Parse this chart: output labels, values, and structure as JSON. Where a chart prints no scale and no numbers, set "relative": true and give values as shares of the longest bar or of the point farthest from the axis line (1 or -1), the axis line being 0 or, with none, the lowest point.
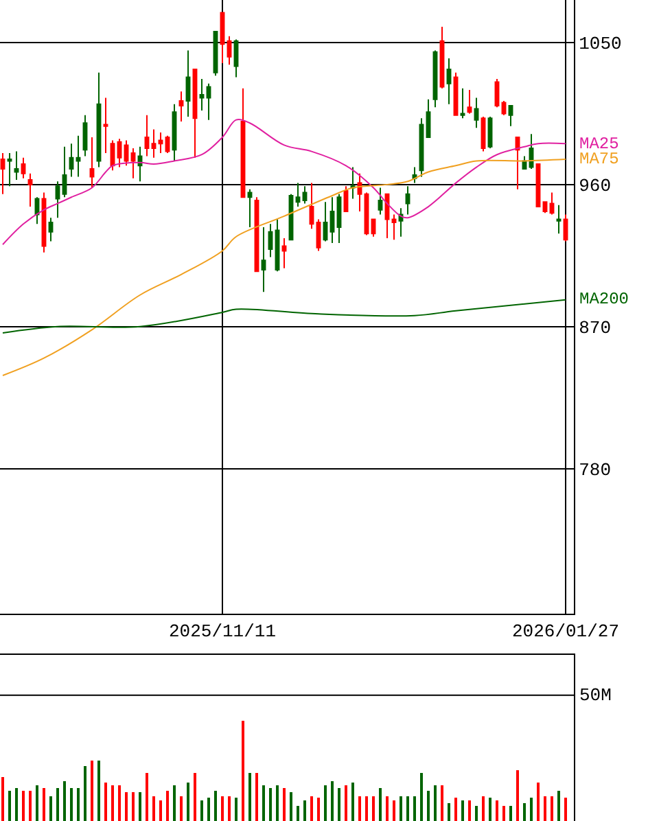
{
  "chart_data": [
    {
      "type": "candlestick",
      "categories": [
        null,
        null,
        null,
        null,
        null,
        null,
        null,
        null,
        null,
        null,
        null,
        null,
        null,
        null,
        null,
        null,
        null,
        null,
        null,
        null,
        null,
        null,
        null,
        null,
        null,
        null,
        null,
        null,
        null,
        null,
        null,
        null,
        "2025/11/11",
        null,
        null,
        null,
        null,
        null,
        null,
        null,
        null,
        null,
        null,
        null,
        null,
        null,
        null,
        null,
        null,
        null,
        null,
        null,
        null,
        null,
        null,
        null,
        null,
        null,
        null,
        null,
        null,
        null,
        null,
        null,
        null,
        null,
        null,
        null,
        null,
        null,
        null,
        null,
        null,
        null,
        null,
        null,
        null,
        null,
        null,
        null,
        null,
        null,
        "2026/01/27"
      ],
      "ohlc": [
        [
          976,
          980,
          954,
          970
        ],
        [
          975,
          980,
          959,
          976
        ],
        [
          968,
          981,
          963,
          970
        ],
        [
          973,
          977,
          964,
          967
        ],
        [
          963,
          967,
          946,
          960
        ],
        [
          941,
          952,
          935,
          951
        ],
        [
          951,
          955,
          917,
          921
        ],
        [
          930,
          939,
          924,
          936
        ],
        [
          951,
          962,
          939,
          959
        ],
        [
          954,
          984,
          952,
          966
        ],
        [
          970,
          986,
          965,
          977
        ],
        [
          975,
          991,
          965,
          977
        ],
        [
          982,
          1004,
          978,
          999
        ],
        [
          970,
          990,
          958,
          965
        ],
        [
          975,
          1031,
          971,
          1011
        ],
        [
          998,
          1015,
          980,
          997
        ],
        [
          986,
          988,
          969,
          972
        ],
        [
          987,
          989,
          971,
          977
        ],
        [
          985,
          988,
          972,
          975
        ],
        [
          980,
          983,
          964,
          975
        ],
        [
          972,
          984,
          962,
          978
        ],
        [
          990,
          1004,
          978,
          983
        ],
        [
          986,
          995,
          977,
          983
        ],
        [
          988,
          993,
          980,
          986
        ],
        [
          990,
          991,
          980,
          981
        ],
        [
          982,
          1011,
          975,
          1006
        ],
        [
          1013,
          1019,
          1000,
          1010
        ],
        [
          1013,
          1045,
          1003,
          1028
        ],
        [
          1033,
          1033,
          977,
          1002
        ],
        [
          1015,
          1027,
          1007,
          1017
        ],
        [
          1015,
          1024,
          1001,
          1022
        ],
        [
          1031,
          1057,
          1029,
          1057
        ],
        [
          1069,
          1069,
          1037,
          1049
        ],
        [
          1051,
          1054,
          1036,
          1041
        ],
        [
          1035,
          1052,
          1028,
          1051
        ],
        [
          1000,
          1021,
          952,
          952
        ],
        [
          952,
          957,
          933,
          955
        ],
        [
          950,
          952,
          905,
          905
        ],
        [
          906,
          933,
          892,
          912
        ],
        [
          919,
          935,
          914,
          930
        ],
        [
          906,
          938,
          905,
          931
        ],
        [
          921,
          926,
          907,
          918
        ],
        [
          925,
          954,
          925,
          953
        ],
        [
          949,
          961,
          946,
          952
        ],
        [
          950,
          959,
          948,
          955
        ],
        [
          946,
          961,
          932,
          935
        ],
        [
          936,
          938,
          918,
          920
        ],
        [
          925,
          949,
          924,
          936
        ],
        [
          930,
          952,
          923,
          943
        ],
        [
          933,
          954,
          923,
          952
        ],
        [
          956,
          959,
          943,
          943
        ],
        [
          958,
          971,
          951,
          959
        ],
        [
          961,
          967,
          943,
          954
        ],
        [
          954,
          955,
          928,
          929
        ],
        [
          938,
          938,
          927,
          929
        ],
        [
          944,
          958,
          941,
          950
        ],
        [
          954,
          954,
          926,
          938
        ],
        [
          938,
          941,
          925,
          936
        ],
        [
          937,
          945,
          927,
          941
        ],
        [
          948,
          959,
          941,
          954
        ],
        [
          964,
          971,
          961,
          966
        ],
        [
          969,
          1002,
          965,
          998
        ],
        [
          990,
          1014,
          990,
          1006
        ],
        [
          1014,
          1045,
          1009,
          1044
        ],
        [
          1051,
          1060,
          1021,
          1022
        ],
        [
          1024,
          1040,
          1011,
          1033
        ],
        [
          1028,
          1031,
          1004,
          1004
        ],
        [
          1004,
          1021,
          1002,
          1005
        ],
        [
          1009,
          1020,
          1005,
          1006
        ],
        [
          1001,
          1015,
          996,
          1008
        ],
        [
          1002,
          1003,
          981,
          983
        ],
        [
          984,
          1003,
          983,
          1002
        ],
        [
          1025,
          1027,
          1009,
          1010
        ],
        [
          1012,
          1013,
          1004,
          1005
        ],
        [
          1004,
          1010,
          997,
          1010
        ],
        [
          990,
          990,
          957,
          982
        ],
        [
          970,
          978,
          970,
          975
        ],
        [
          971,
          992,
          970,
          983
        ],
        [
          973,
          973,
          946,
          946
        ],
        [
          949,
          949,
          942,
          943
        ],
        [
          948,
          955,
          941,
          942
        ],
        [
          937,
          947,
          929,
          938
        ],
        [
          938,
          941,
          924,
          925
        ]
      ],
      "colors": [
        "#ff0000",
        "#006400",
        "#006400",
        "#ff0000",
        "#ff0000",
        "#006400",
        "#ff0000",
        "#006400",
        "#006400",
        "#006400",
        "#006400",
        "#006400",
        "#006400",
        "#ff0000",
        "#006400",
        "#ff0000",
        "#ff0000",
        "#ff0000",
        "#ff0000",
        "#ff0000",
        "#006400",
        "#ff0000",
        "#ff0000",
        "#ff0000",
        "#ff0000",
        "#006400",
        "#ff0000",
        "#006400",
        "#ff0000",
        "#006400",
        "#006400",
        "#006400",
        "#ff0000",
        "#ff0000",
        "#006400",
        "#ff0000",
        "#006400",
        "#ff0000",
        "#006400",
        "#006400",
        "#006400",
        "#ff0000",
        "#006400",
        "#006400",
        "#006400",
        "#ff0000",
        "#ff0000",
        "#006400",
        "#006400",
        "#006400",
        "#ff0000",
        "#006400",
        "#ff0000",
        "#ff0000",
        "#ff0000",
        "#006400",
        "#ff0000",
        "#ff0000",
        "#006400",
        "#006400",
        "#006400",
        "#006400",
        "#006400",
        "#006400",
        "#ff0000",
        "#006400",
        "#ff0000",
        "#006400",
        "#ff0000",
        "#006400",
        "#ff0000",
        "#006400",
        "#ff0000",
        "#ff0000",
        "#006400",
        "#ff0000",
        "#006400",
        "#006400",
        "#ff0000",
        "#ff0000",
        "#ff0000",
        "#006400",
        "#ff0000"
      ],
      "series": [
        {
          "name": "MA25",
          "type": "line",
          "color": "#e020a0",
          "values": [
            922,
            null,
            null,
            935,
            null,
            null,
            944,
            null,
            948,
            null,
            952,
            null,
            null,
            958,
            null,
            968,
            972,
            null,
            null,
            null,
            974,
            null,
            973,
            null,
            null,
            975,
            null,
            null,
            null,
            979,
            null,
            null,
            990,
            null,
            1001,
            null,
            999,
            null,
            null,
            null,
            null,
            985,
            null,
            null,
            null,
            981,
            null,
            null,
            null,
            null,
            972,
            null,
            null,
            null,
            958,
            null,
            948,
            null,
            940,
            939,
            null,
            null,
            946,
            null,
            null,
            null,
            961,
            null,
            null,
            971,
            null,
            null,
            979,
            null,
            null,
            null,
            984,
            null,
            986,
            null,
            null,
            null,
            986
          ]
        },
        {
          "name": "MA75",
          "type": "line",
          "color": "#f0a020",
          "values": [
            839,
            null,
            null,
            null,
            null,
            null,
            850,
            null,
            null,
            null,
            null,
            null,
            null,
            868,
            null,
            null,
            null,
            null,
            null,
            null,
            890,
            null,
            null,
            null,
            null,
            null,
            903,
            null,
            null,
            null,
            null,
            null,
            918,
            null,
            927,
            null,
            null,
            null,
            null,
            null,
            null,
            940,
            null,
            null,
            null,
            null,
            null,
            null,
            953,
            null,
            null,
            958,
            null,
            null,
            null,
            null,
            960,
            null,
            null,
            962,
            null,
            null,
            968,
            null,
            null,
            null,
            972,
            null,
            null,
            975,
            null,
            null,
            null,
            null,
            null,
            null,
            975,
            null,
            null,
            null,
            null,
            null,
            976
          ]
        },
        {
          "name": "MA200",
          "type": "line",
          "color": "#006400",
          "values": [
            866,
            null,
            null,
            null,
            null,
            null,
            null,
            null,
            870,
            null,
            null,
            null,
            null,
            null,
            null,
            null,
            null,
            null,
            null,
            null,
            870,
            null,
            null,
            null,
            null,
            null,
            null,
            null,
            null,
            null,
            null,
            null,
            879,
            null,
            881,
            null,
            null,
            null,
            null,
            null,
            null,
            null,
            null,
            null,
            null,
            null,
            878,
            null,
            null,
            null,
            null,
            null,
            null,
            null,
            null,
            null,
            null,
            null,
            null,
            null,
            877,
            null,
            null,
            null,
            null,
            null,
            880,
            null,
            null,
            null,
            null,
            null,
            null,
            null,
            null,
            null,
            null,
            null,
            null,
            null,
            null,
            null,
            887
          ]
        }
      ],
      "ylim": [
        688,
        1077
      ],
      "yticks": [
        780,
        870,
        960,
        1050
      ],
      "grid": true
    },
    {
      "type": "bar",
      "relative": true,
      "categories": [
        null,
        null,
        null,
        null,
        null,
        null,
        null,
        null,
        null,
        null,
        null,
        null,
        null,
        null,
        null,
        null,
        null,
        null,
        null,
        null,
        null,
        null,
        null,
        null,
        null,
        null,
        null,
        null,
        null,
        null,
        null,
        null,
        null,
        null,
        null,
        null,
        null,
        null,
        null,
        null,
        null,
        null,
        null,
        null,
        null,
        null,
        null,
        null,
        null,
        null,
        null,
        null,
        null,
        null,
        null,
        null,
        null,
        null,
        null,
        null,
        null,
        null,
        null,
        null,
        null,
        null,
        null,
        null,
        null,
        null,
        null,
        null,
        null,
        null,
        null,
        null,
        null,
        null,
        null,
        null,
        null,
        null,
        null
      ],
      "values": [
        0.43,
        0.3,
        0.33,
        0.3,
        0.3,
        0.35,
        0.33,
        0.25,
        0.33,
        0.4,
        0.33,
        0.33,
        0.55,
        0.6,
        0.6,
        0.38,
        0.35,
        0.35,
        0.28,
        0.28,
        0.28,
        0.48,
        0.25,
        0.2,
        0.3,
        0.35,
        0.25,
        0.38,
        0.48,
        0.2,
        0.23,
        0.3,
        0.25,
        0.25,
        0.23,
        1,
        0.48,
        0.48,
        0.35,
        0.33,
        0.35,
        0.33,
        0.28,
        0.15,
        0.2,
        0.25,
        0.23,
        0.35,
        0.4,
        0.33,
        0.35,
        0.38,
        0.25,
        0.25,
        0.25,
        0.33,
        0.25,
        0.2,
        0.25,
        0.25,
        0.25,
        0.48,
        0.3,
        0.35,
        0.35,
        0.18,
        0.23,
        0.2,
        0.2,
        0.15,
        0.25,
        0.23,
        0.2,
        0.15,
        0.15,
        0.5,
        0.18,
        0.23,
        0.38,
        0.25,
        0.25,
        0.3,
        0.23
      ],
      "colors": [
        "#ff0000",
        "#006400",
        "#006400",
        "#ff0000",
        "#ff0000",
        "#006400",
        "#ff0000",
        "#006400",
        "#006400",
        "#006400",
        "#006400",
        "#006400",
        "#006400",
        "#ff0000",
        "#006400",
        "#ff0000",
        "#ff0000",
        "#ff0000",
        "#ff0000",
        "#ff0000",
        "#006400",
        "#ff0000",
        "#ff0000",
        "#ff0000",
        "#ff0000",
        "#006400",
        "#ff0000",
        "#006400",
        "#ff0000",
        "#006400",
        "#006400",
        "#006400",
        "#ff0000",
        "#ff0000",
        "#006400",
        "#ff0000",
        "#006400",
        "#ff0000",
        "#006400",
        "#006400",
        "#006400",
        "#ff0000",
        "#006400",
        "#006400",
        "#006400",
        "#ff0000",
        "#ff0000",
        "#006400",
        "#006400",
        "#006400",
        "#ff0000",
        "#006400",
        "#ff0000",
        "#ff0000",
        "#ff0000",
        "#006400",
        "#ff0000",
        "#ff0000",
        "#006400",
        "#006400",
        "#006400",
        "#006400",
        "#006400",
        "#006400",
        "#ff0000",
        "#006400",
        "#ff0000",
        "#006400",
        "#ff0000",
        "#006400",
        "#ff0000",
        "#006400",
        "#ff0000",
        "#ff0000",
        "#006400",
        "#ff0000",
        "#006400",
        "#006400",
        "#ff0000",
        "#ff0000",
        "#ff0000",
        "#006400",
        "#ff0000"
      ],
      "ref_lines": [
        {
          "axis": "y",
          "value": 1.25,
          "label": "50M",
          "color": "#000000"
        }
      ]
    }
  ]
}
